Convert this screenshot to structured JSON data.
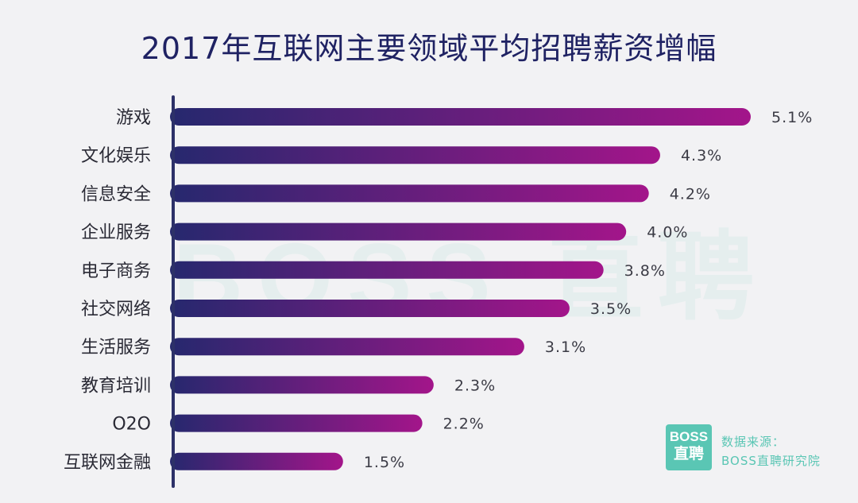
{
  "chart_data": {
    "type": "bar",
    "orientation": "horizontal",
    "title": "2017年互联网主要领域平均招聘薪资增幅",
    "categories": [
      "游戏",
      "文化娱乐",
      "信息安全",
      "企业服务",
      "电子商务",
      "社交网络",
      "生活服务",
      "教育培训",
      "O2O",
      "互联网金融"
    ],
    "values": [
      5.1,
      4.3,
      4.2,
      4.0,
      3.8,
      3.5,
      3.1,
      2.3,
      2.2,
      1.5
    ],
    "value_labels": [
      "5.1%",
      "4.3%",
      "4.2%",
      "4.0%",
      "3.8%",
      "3.5%",
      "3.1%",
      "2.3%",
      "2.2%",
      "1.5%"
    ],
    "xlim": [
      0,
      5.1
    ],
    "grid": false,
    "bar_gradient": [
      "#26286e",
      "#a3158a"
    ],
    "axis_color": "#2d3168"
  },
  "watermark": "BOSS 直聘",
  "source": {
    "logo_line1": "BOSS",
    "logo_line2": "直聘",
    "label": "数据来源：",
    "name": "BOSS直聘研究院"
  },
  "colors": {
    "background": "#f2f2f4",
    "title": "#1f2263",
    "brand": "#5ac6b4"
  }
}
